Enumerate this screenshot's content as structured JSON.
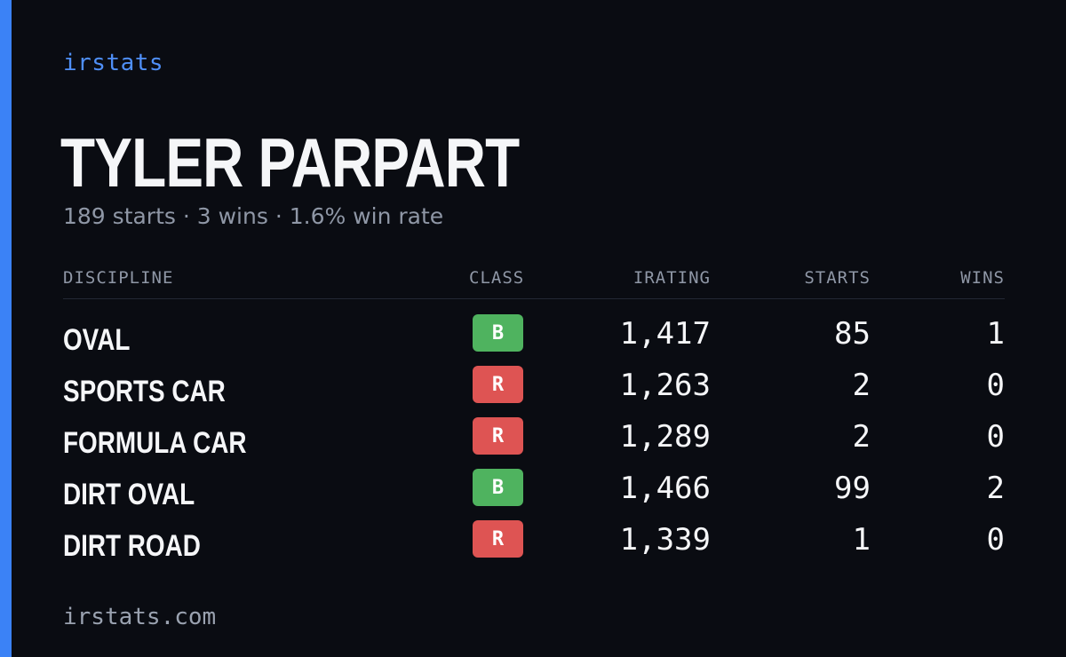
{
  "brand": "irstats",
  "driver": {
    "name": "TYLER PARPART",
    "summary": "189 starts · 3 wins · 1.6% win rate"
  },
  "table": {
    "headers": {
      "discipline": "DISCIPLINE",
      "class": "CLASS",
      "irating": "IRATING",
      "starts": "STARTS",
      "wins": "WINS"
    },
    "rows": [
      {
        "discipline": "OVAL",
        "class": "B",
        "class_color": "#4fb35f",
        "irating": "1,417",
        "starts": "85",
        "wins": "1"
      },
      {
        "discipline": "SPORTS CAR",
        "class": "R",
        "class_color": "#de5453",
        "irating": "1,263",
        "starts": "2",
        "wins": "0"
      },
      {
        "discipline": "FORMULA CAR",
        "class": "R",
        "class_color": "#de5453",
        "irating": "1,289",
        "starts": "2",
        "wins": "0"
      },
      {
        "discipline": "DIRT OVAL",
        "class": "B",
        "class_color": "#4fb35f",
        "irating": "1,466",
        "starts": "99",
        "wins": "2"
      },
      {
        "discipline": "DIRT ROAD",
        "class": "R",
        "class_color": "#de5453",
        "irating": "1,339",
        "starts": "1",
        "wins": "0"
      }
    ]
  },
  "footer": "irstats.com",
  "colors": {
    "accent": "#3b82f6",
    "brand_text": "#4f8ff7",
    "background": "#0a0c12"
  }
}
